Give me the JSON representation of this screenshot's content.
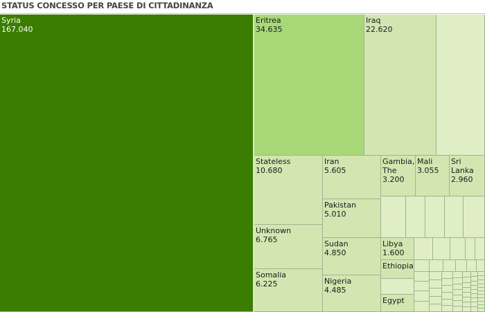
{
  "title": "STATUS CONCESSO PER PAESE DI CITTADINANZA",
  "colors": {
    "top": "#3a7d00",
    "second": "#a8d878",
    "third": "#d3e6b1",
    "rest": "#dfeec5"
  },
  "chart_data": {
    "type": "treemap",
    "title": "STATUS CONCESSO PER PAESE DI CITTADINANZA",
    "cells": [
      {
        "name": "Syria",
        "value": 167040,
        "label": "Syria\n167.040"
      },
      {
        "name": "Eritrea",
        "value": 34635,
        "label": "Eritrea\n34.635"
      },
      {
        "name": "Iraq",
        "value": 22620,
        "label": "Iraq\n22.620"
      },
      {
        "name": "Stateless",
        "value": 10680,
        "label": "Stateless\n10.680"
      },
      {
        "name": "Unknown",
        "value": 6765,
        "label": "Unknown\n6.765"
      },
      {
        "name": "Somalia",
        "value": 6225,
        "label": "Somalia\n6.225"
      },
      {
        "name": "Iran",
        "value": 5605,
        "label": "Iran\n5.605"
      },
      {
        "name": "Pakistan",
        "value": 5010,
        "label": "Pakistan\n5.010"
      },
      {
        "name": "Sudan",
        "value": 4850,
        "label": "Sudan\n4.850"
      },
      {
        "name": "Nigeria",
        "value": 4485,
        "label": "Nigeria\n4.485"
      },
      {
        "name": "Gambia, The",
        "value": 3200,
        "label": "Gambia,\nThe\n3.200"
      },
      {
        "name": "Mali",
        "value": 3055,
        "label": "Mali\n3.055"
      },
      {
        "name": "Sri Lanka",
        "value": 2960,
        "label": "Sri\nLanka\n2.960"
      },
      {
        "name": "Libya",
        "value": 1600,
        "label": "Libya\n1.600"
      },
      {
        "name": "Ethiopia",
        "value": null,
        "label": "Ethiopia"
      },
      {
        "name": "Egypt",
        "value": null,
        "label": "Egypt"
      }
    ]
  }
}
